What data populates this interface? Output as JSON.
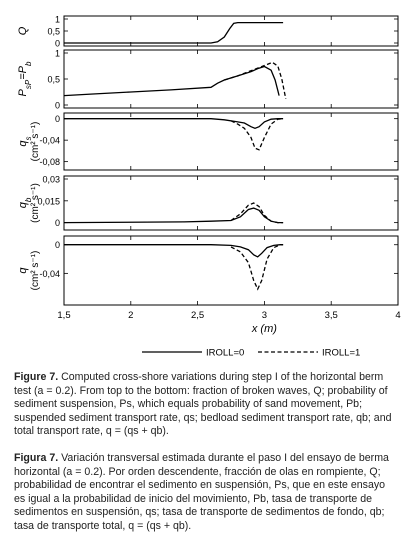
{
  "chart_data": {
    "type": "line",
    "x_range": [
      1.5,
      4
    ],
    "x_ticks": [
      "1,5",
      "2",
      "2,5",
      "3",
      "3,5",
      "4"
    ],
    "xlabel": "x (m)",
    "legend": {
      "placement": "bottom-right",
      "entries": [
        {
          "label": "IROLL=0",
          "style": "solid"
        },
        {
          "label": "IROLL=1",
          "style": "dashed"
        }
      ]
    },
    "panels": [
      {
        "id": "Q",
        "ylabel": "Q",
        "ylim": [
          0,
          1
        ],
        "yticks": [
          "1",
          "0,5",
          "0"
        ],
        "series": [
          {
            "style": "solid",
            "x": [
              1.5,
              2.6,
              2.65,
              2.7,
              2.74,
              2.77,
              2.8,
              3.0,
              3.14
            ],
            "y": [
              0.0,
              0.0,
              0.05,
              0.25,
              0.6,
              0.82,
              0.85,
              0.85,
              0.85
            ]
          }
        ]
      },
      {
        "id": "P",
        "ylabel": "P_s=P_b",
        "ylim": [
          0,
          1
        ],
        "yticks": [
          "1",
          "0,5",
          "0"
        ],
        "series": [
          {
            "style": "solid",
            "x": [
              1.5,
              1.7,
              2.0,
              2.3,
              2.6,
              2.65,
              2.7,
              2.8,
              2.9,
              2.95,
              3.0,
              3.05,
              3.08,
              3.1,
              3.11
            ],
            "y": [
              0.18,
              0.21,
              0.25,
              0.29,
              0.34,
              0.42,
              0.48,
              0.56,
              0.64,
              0.7,
              0.74,
              0.67,
              0.48,
              0.28,
              0.18
            ]
          },
          {
            "style": "dashed",
            "x": [
              2.7,
              2.8,
              2.9,
              3.0,
              3.06,
              3.1,
              3.13,
              3.15,
              3.16
            ],
            "y": [
              0.48,
              0.56,
              0.66,
              0.76,
              0.82,
              0.75,
              0.5,
              0.25,
              0.12
            ]
          }
        ]
      },
      {
        "id": "qs",
        "ylabel": "q_s",
        "yunit": "(cm² s⁻¹)",
        "ylim": [
          -0.09,
          0.005
        ],
        "yticks": [
          "0",
          "-0,04",
          "-0,08"
        ],
        "series": [
          {
            "style": "solid",
            "x": [
              1.5,
              2.6,
              2.7,
              2.8,
              2.85,
              2.9,
              2.93,
              2.96,
              3.0,
              3.05,
              3.1,
              3.14
            ],
            "y": [
              0,
              0,
              -0.002,
              -0.006,
              -0.008,
              -0.015,
              -0.018,
              -0.015,
              -0.006,
              -0.001,
              0,
              0
            ]
          },
          {
            "style": "dashed",
            "x": [
              2.75,
              2.8,
              2.85,
              2.9,
              2.93,
              2.96,
              3.0,
              3.05,
              3.1,
              3.14
            ],
            "y": [
              -0.004,
              -0.01,
              -0.018,
              -0.035,
              -0.055,
              -0.058,
              -0.035,
              -0.01,
              -0.001,
              0
            ]
          }
        ]
      },
      {
        "id": "qb",
        "ylabel": "q_b",
        "yunit": "(cm² s⁻¹)",
        "ylim": [
          -0.003,
          0.03
        ],
        "yticks": [
          "0,03",
          "0,015",
          "0"
        ],
        "series": [
          {
            "style": "solid",
            "x": [
              1.5,
              2.4,
              2.6,
              2.75,
              2.82,
              2.88,
              2.92,
              2.96,
              3.0,
              3.05,
              3.1,
              3.14
            ],
            "y": [
              0,
              0.0005,
              0.001,
              0.0015,
              0.004,
              0.009,
              0.01,
              0.0085,
              0.004,
              0.001,
              0,
              0
            ]
          },
          {
            "style": "dashed",
            "x": [
              2.75,
              2.82,
              2.88,
              2.92,
              2.96,
              3.0,
              3.05,
              3.1,
              3.14
            ],
            "y": [
              0.0015,
              0.006,
              0.012,
              0.0135,
              0.011,
              0.005,
              0.001,
              0,
              0
            ]
          }
        ]
      },
      {
        "id": "q",
        "ylabel": "q",
        "yunit": "(cm² s⁻¹)",
        "ylim": [
          -0.08,
          0.008
        ],
        "yticks": [
          "0",
          "-0,04"
        ],
        "series": [
          {
            "style": "solid",
            "x": [
              1.5,
              2.6,
              2.75,
              2.82,
              2.88,
              2.92,
              2.95,
              2.98,
              3.02,
              3.07,
              3.12,
              3.14
            ],
            "y": [
              0,
              0,
              -0.001,
              -0.003,
              -0.007,
              -0.014,
              -0.017,
              -0.012,
              -0.004,
              -0.001,
              0,
              0
            ]
          },
          {
            "style": "dashed",
            "x": [
              2.75,
              2.82,
              2.88,
              2.92,
              2.95,
              2.98,
              3.02,
              3.07,
              3.12,
              3.14
            ],
            "y": [
              -0.003,
              -0.01,
              -0.025,
              -0.05,
              -0.062,
              -0.05,
              -0.02,
              -0.004,
              0,
              0
            ]
          }
        ]
      }
    ]
  },
  "caption_en": {
    "label": "Figure 7.",
    "text": "Computed cross-shore variations during step I of the horizontal berm test (a = 0.2). From top to the bottom: fraction of broken waves, Q; probability of sediment suspension, Ps, which equals probability of sand movement, Pb; suspended sediment transport rate, qs; bedload sediment transport rate, qb; and total transport rate, q = (qs + qb)."
  },
  "caption_es": {
    "label": "Figura 7.",
    "text": "Variación transversal estimada durante el paso I del ensayo de berma horizontal (a = 0.2). Por orden descendente, fracción de olas en rompiente, Q; probabilidad de encontrar el sedimento en suspensión, Ps, que en este ensayo es igual a la probabilidad de inicio del movimiento, Pb, tasa de transporte de sedimentos en suspensión, qs; tasa de transporte de sedimentos de fondo, qb; tasa de transporte total, q = (qs + qb)."
  }
}
